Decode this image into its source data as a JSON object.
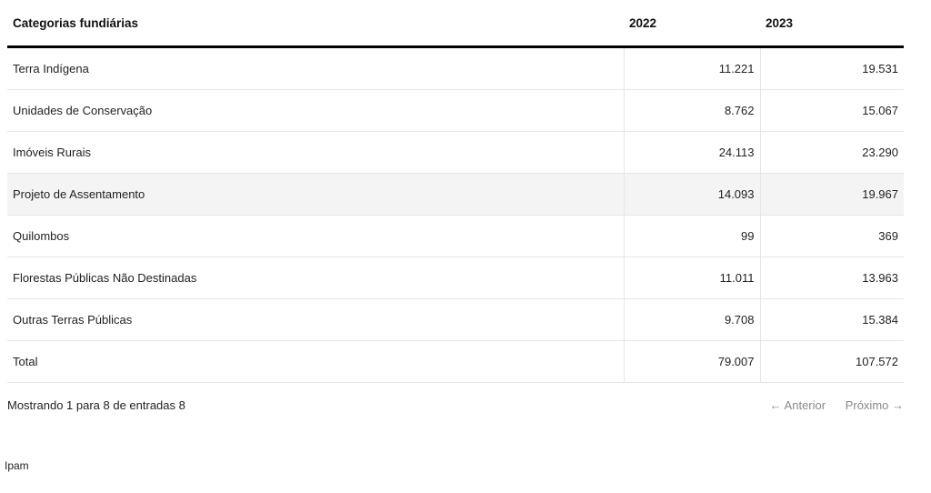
{
  "table": {
    "headers": [
      "Categorias fundiárias",
      "2022",
      "2023"
    ],
    "rows": [
      [
        "Terra Indígena",
        "11.221",
        "19.531"
      ],
      [
        "Unidades de Conservação",
        "8.762",
        "15.067"
      ],
      [
        "Imóveis Rurais",
        "24.113",
        "23.290"
      ],
      [
        "Projeto de Assentamento",
        "14.093",
        "19.967"
      ],
      [
        "Quilombos",
        "99",
        "369"
      ],
      [
        "Florestas Públicas Não Destinadas",
        "11.011",
        "13.963"
      ],
      [
        "Outras Terras Públicas",
        "9.708",
        "15.384"
      ],
      [
        "Total",
        "79.007",
        "107.572"
      ]
    ],
    "highlighted_row": 4
  },
  "footer": {
    "info": "Mostrando 1 para 8 de entradas 8",
    "prev": "← Anterior",
    "next": "Próximo →"
  },
  "source": "Ipam"
}
